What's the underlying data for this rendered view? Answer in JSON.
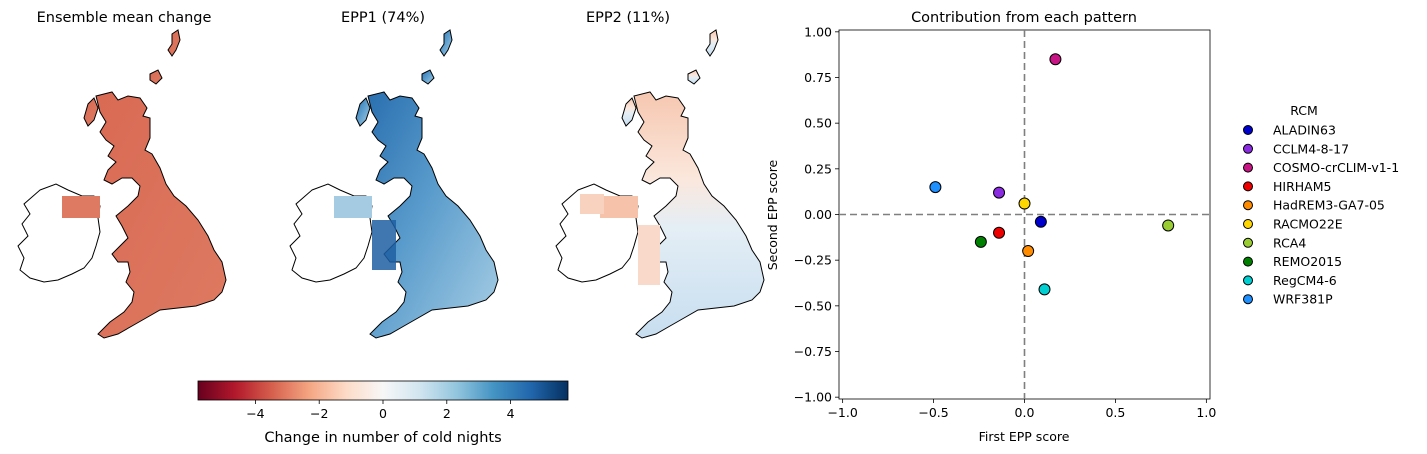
{
  "maps": [
    {
      "title": "Ensemble mean change",
      "style": "uniform-red"
    },
    {
      "title": "EPP1 (74%)",
      "style": "blue"
    },
    {
      "title": "EPP2 (11%)",
      "style": "mixed"
    }
  ],
  "colorbar": {
    "label": "Change in number of cold nights",
    "range": [
      -5.8,
      5.8
    ],
    "ticks": [
      -4,
      -2,
      0,
      2,
      4
    ],
    "tick_labels": [
      "−4",
      "−2",
      "0",
      "2",
      "4"
    ],
    "colormap": "RdBu"
  },
  "chart_data": {
    "type": "scatter",
    "title": "Contribution from each pattern",
    "xlabel": "First EPP score",
    "ylabel": "Second EPP score",
    "xlim": [
      -1.02,
      1.02
    ],
    "ylim": [
      -1.01,
      1.01
    ],
    "xticks": [
      -1.0,
      -0.5,
      0.0,
      0.5,
      1.0
    ],
    "xtick_labels": [
      "−1.0",
      "−0.5",
      "0.0",
      "0.5",
      "1.0"
    ],
    "yticks": [
      1.0,
      0.75,
      0.5,
      0.25,
      0.0,
      -0.25,
      -0.5,
      -0.75,
      -1.0
    ],
    "ytick_labels": [
      "1.00",
      "0.75",
      "0.50",
      "0.25",
      "0.00",
      "−0.25",
      "−0.50",
      "−0.75",
      "−1.00"
    ],
    "reference_lines": {
      "x": 0,
      "y": 0,
      "style": "dashed"
    },
    "legend_title": "RCM",
    "legend_position": "outside-right",
    "series": [
      {
        "name": "ALADIN63",
        "color": "#0000cd",
        "x": 0.09,
        "y": -0.04
      },
      {
        "name": "CCLM4-8-17",
        "color": "#8a2be2",
        "x": -0.14,
        "y": 0.12
      },
      {
        "name": "COSMO-crCLIM-v1-1",
        "color": "#c71585",
        "x": 0.17,
        "y": 0.85
      },
      {
        "name": "HIRHAM5",
        "color": "#ee0000",
        "x": -0.14,
        "y": -0.1
      },
      {
        "name": "HadREM3-GA7-05",
        "color": "#ff8c00",
        "x": 0.02,
        "y": -0.2
      },
      {
        "name": "RACMO22E",
        "color": "#ffd700",
        "x": 0.0,
        "y": 0.06
      },
      {
        "name": "RCA4",
        "color": "#9acd32",
        "x": 0.79,
        "y": -0.06
      },
      {
        "name": "REMO2015",
        "color": "#008000",
        "x": -0.24,
        "y": -0.15
      },
      {
        "name": "RegCM4-6",
        "color": "#00ced1",
        "x": 0.11,
        "y": -0.41
      },
      {
        "name": "WRF381P",
        "color": "#1e90ff",
        "x": -0.49,
        "y": 0.15
      }
    ]
  }
}
